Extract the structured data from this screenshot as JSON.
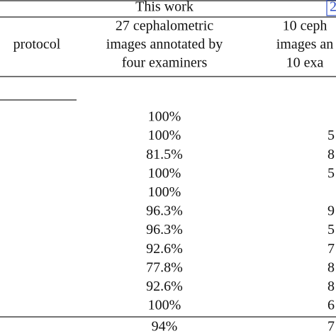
{
  "table": {
    "group_label": "This work",
    "reference": "2",
    "header": {
      "protocol": "protocol",
      "col_this_work": [
        "27 cephalometric",
        "images annotated by",
        "four examiners"
      ],
      "col_other": [
        "10 ceph",
        "images an",
        "10 exa"
      ]
    },
    "rows": [
      [
        "100%",
        null
      ],
      [
        "100%",
        "5"
      ],
      [
        "81.5%",
        "8"
      ],
      [
        "100%",
        "5"
      ],
      [
        "100%",
        null
      ],
      [
        "96.3%",
        "9"
      ],
      [
        "96.3%",
        "5"
      ],
      [
        "92.6%",
        "7"
      ],
      [
        "77.8%",
        "8"
      ],
      [
        "92.6%",
        "8"
      ],
      [
        "100%",
        "6"
      ]
    ],
    "total": [
      "94%",
      "7"
    ]
  }
}
